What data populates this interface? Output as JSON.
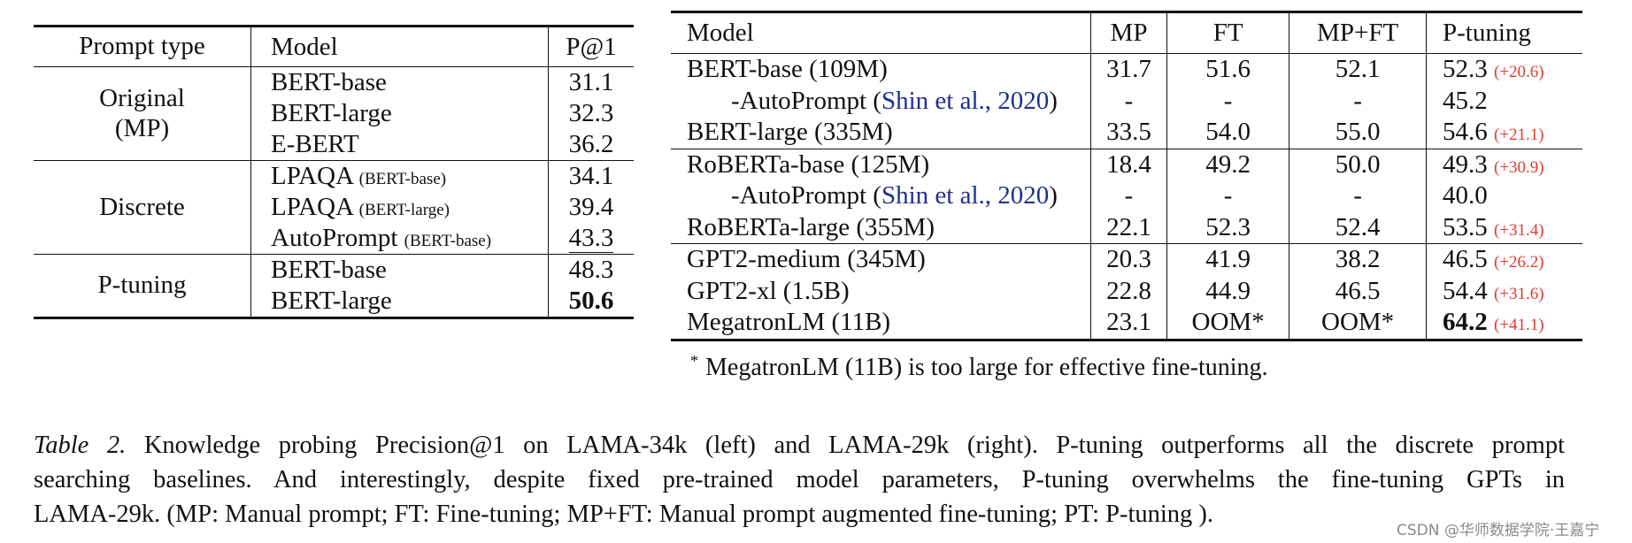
{
  "left_table": {
    "headers": [
      "Prompt type",
      "Model",
      "P@1"
    ],
    "groups": [
      {
        "type": "Original\n(MP)",
        "rows": [
          {
            "model": "BERT-base",
            "sub": "",
            "p1": "31.1"
          },
          {
            "model": "BERT-large",
            "sub": "",
            "p1": "32.3"
          },
          {
            "model": "E-BERT",
            "sub": "",
            "p1": "36.2"
          }
        ]
      },
      {
        "type": "Discrete",
        "rows": [
          {
            "model": "LPAQA",
            "sub": "(BERT-base)",
            "p1": "34.1"
          },
          {
            "model": "LPAQA",
            "sub": "(BERT-large)",
            "p1": "39.4"
          },
          {
            "model": "AutoPrompt",
            "sub": "(BERT-base)",
            "p1": "43.3",
            "underline": true
          }
        ]
      },
      {
        "type": "P-tuning",
        "rows": [
          {
            "model": "BERT-base",
            "sub": "",
            "p1": "48.3"
          },
          {
            "model": "BERT-large",
            "sub": "",
            "p1": "50.6",
            "bold": true
          }
        ]
      }
    ]
  },
  "right_table": {
    "headers": [
      "Model",
      "MP",
      "FT",
      "MP+FT",
      "P-tuning"
    ],
    "groups": [
      [
        {
          "model": "BERT-base (109M)",
          "mp": "31.7",
          "ft": "51.6",
          "mpft": "52.1",
          "pt": "52.3",
          "gain": "(+20.6)"
        },
        {
          "model": "-AutoPrompt (",
          "cite": "Shin et al., 2020",
          "close": ")",
          "indent": true,
          "mp": "-",
          "ft": "-",
          "mpft": "-",
          "pt": "45.2",
          "gain": ""
        },
        {
          "model": "BERT-large (335M)",
          "mp": "33.5",
          "ft": "54.0",
          "mpft": "55.0",
          "pt": "54.6",
          "gain": "(+21.1)"
        }
      ],
      [
        {
          "model": "RoBERTa-base (125M)",
          "mp": "18.4",
          "ft": "49.2",
          "mpft": "50.0",
          "pt": "49.3",
          "gain": "(+30.9)"
        },
        {
          "model": "-AutoPrompt (",
          "cite": "Shin et al., 2020",
          "close": ")",
          "indent": true,
          "mp": "-",
          "ft": "-",
          "mpft": "-",
          "pt": "40.0",
          "gain": ""
        },
        {
          "model": "RoBERTa-large (355M)",
          "mp": "22.1",
          "ft": "52.3",
          "mpft": "52.4",
          "pt": "53.5",
          "gain": "(+31.4)"
        }
      ],
      [
        {
          "model": "GPT2-medium (345M)",
          "mp": "20.3",
          "ft": "41.9",
          "mpft": "38.2",
          "pt": "46.5",
          "gain": "(+26.2)"
        },
        {
          "model": "GPT2-xl (1.5B)",
          "mp": "22.8",
          "ft": "44.9",
          "mpft": "46.5",
          "pt": "54.4",
          "gain": "(+31.6)"
        },
        {
          "model": "MegatronLM (11B)",
          "mp": "23.1",
          "ft": "OOM*",
          "mpft": "OOM*",
          "pt": "64.2",
          "gain": "(+41.1)",
          "bold": true
        }
      ]
    ]
  },
  "footnote": {
    "mark": "*",
    "text": "MegatronLM (11B) is too large for effective fine-tuning."
  },
  "caption": {
    "label": "Table 2.",
    "lines": [
      " Knowledge probing Precision@1 on LAMA-34k (left) and LAMA-29k (right). P-tuning outperforms all the discrete prompt",
      "searching baselines.  And interestingly, despite fixed pre-trained model parameters, P-tuning overwhelms the fine-tuning GPTs in",
      "LAMA-29k. (MP: Manual prompt; FT: Fine-tuning; MP+FT: Manual prompt augmented fine-tuning; PT: P-tuning )."
    ]
  },
  "watermark": "CSDN @华师数据学院·王嘉宁",
  "colors": {
    "gain": "#e03a2e",
    "citation": "#1f2f8f"
  }
}
